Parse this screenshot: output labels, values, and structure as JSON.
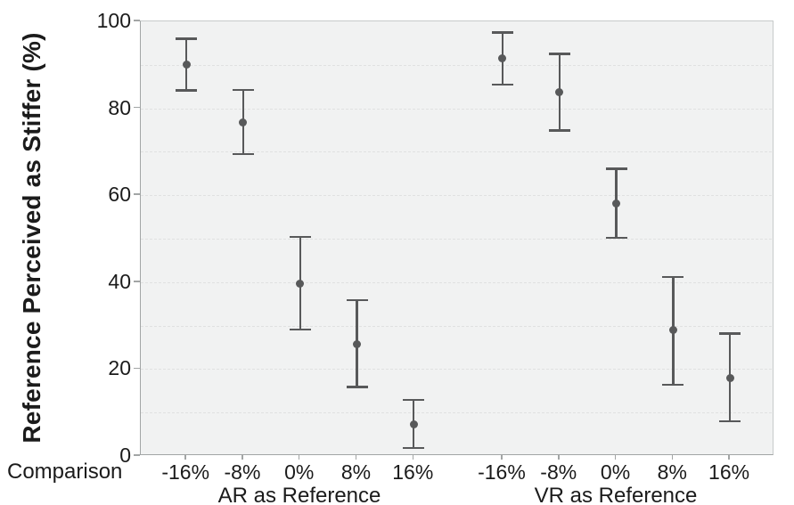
{
  "chart_data": {
    "type": "scatter",
    "subtype": "point-estimates-with-error-bars",
    "title": "",
    "ylabel": "Reference Perceived as Stiffer (%)",
    "xlabel": "Comparison",
    "ylim": [
      0,
      100
    ],
    "y_ticks": [
      0,
      20,
      40,
      60,
      80,
      100
    ],
    "grid": "dashed horizontal lines every 10 units",
    "legend": "none",
    "categories": [
      "-16%",
      "-8%",
      "0%",
      "8%",
      "16%"
    ],
    "groups": [
      {
        "label": "AR as Reference",
        "points": [
          {
            "category": "-16%",
            "mean": 90.0,
            "ci_low": 84.1,
            "ci_high": 96.0
          },
          {
            "category": "-8%",
            "mean": 76.7,
            "ci_low": 69.5,
            "ci_high": 84.2
          },
          {
            "category": "0%",
            "mean": 39.7,
            "ci_low": 29.1,
            "ci_high": 50.4
          },
          {
            "category": "8%",
            "mean": 25.8,
            "ci_low": 15.9,
            "ci_high": 35.8
          },
          {
            "category": "16%",
            "mean": 7.2,
            "ci_low": 1.8,
            "ci_high": 12.9
          }
        ]
      },
      {
        "label": "VR as Reference",
        "points": [
          {
            "category": "-16%",
            "mean": 91.4,
            "ci_low": 85.5,
            "ci_high": 97.4
          },
          {
            "category": "-8%",
            "mean": 83.7,
            "ci_low": 74.9,
            "ci_high": 92.5
          },
          {
            "category": "0%",
            "mean": 58.0,
            "ci_low": 50.2,
            "ci_high": 66.1
          },
          {
            "category": "8%",
            "mean": 28.9,
            "ci_low": 16.4,
            "ci_high": 41.2
          },
          {
            "category": "16%",
            "mean": 17.9,
            "ci_low": 8.0,
            "ci_high": 28.2
          }
        ]
      }
    ],
    "colors": {
      "marker": "#58595a",
      "plot_background": "#f1f2f2",
      "grid": "#e0e1e1",
      "axis": "#a2a5a5",
      "frame": "#c7caca",
      "text": "#1b1b1b"
    }
  }
}
